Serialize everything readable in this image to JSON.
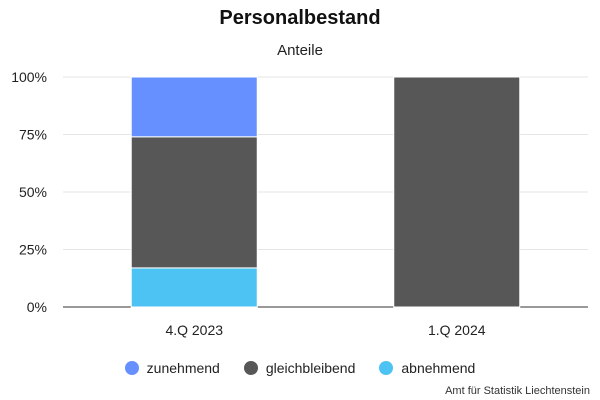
{
  "chart_data": {
    "type": "bar",
    "stacked": true,
    "title": "Personalbestand",
    "subtitle": "Anteile",
    "categories": [
      "4.Q 2023",
      "1.Q 2024"
    ],
    "series": [
      {
        "name": "abnehmend",
        "color": "#4cc3f2",
        "values": [
          17,
          0
        ]
      },
      {
        "name": "gleichbleibend",
        "color": "#575757",
        "values": [
          57,
          100
        ]
      },
      {
        "name": "zunehmend",
        "color": "#6690ff",
        "values": [
          26,
          0
        ]
      }
    ],
    "legend_order": [
      "zunehmend",
      "gleichbleibend",
      "abnehmend"
    ],
    "ylim": [
      0,
      100
    ],
    "yticks": [
      "0%",
      "25%",
      "50%",
      "75%",
      "100%"
    ],
    "ytick_values": [
      0,
      25,
      50,
      75,
      100
    ],
    "grid": true,
    "legend_position": "bottom"
  },
  "credit": "Amt für Statistik Liechtenstein"
}
